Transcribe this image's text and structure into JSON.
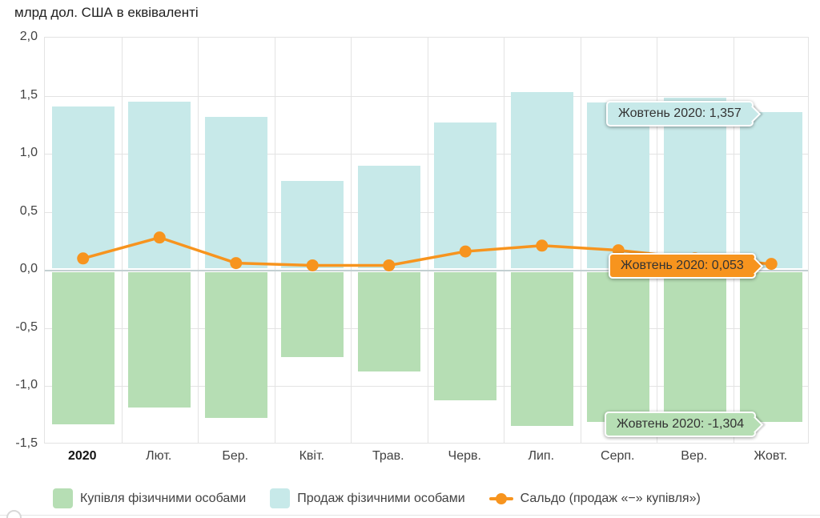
{
  "title": "млрд дол. США в еквіваленті",
  "colors": {
    "purchase_green": "#b6deb4",
    "sale_blue": "#c7e9e9",
    "saldo_orange": "#f7941e",
    "grid": "#e3e3e3",
    "zero_line": "#c3cfd1",
    "axis_text": "#424242"
  },
  "y_axis": {
    "tick_labels": [
      "2,0",
      "1,5",
      "1,0",
      "0,5",
      "0,0",
      "-0,5",
      "-1,0",
      "-1,5"
    ],
    "tick_values": [
      2.0,
      1.5,
      1.0,
      0.5,
      0.0,
      -0.5,
      -1.0,
      -1.5
    ]
  },
  "x_axis": {
    "labels": [
      "2020",
      "Лют.",
      "Бер.",
      "Квіт.",
      "Трав.",
      "Черв.",
      "Лип.",
      "Серп.",
      "Вер.",
      "Жовт."
    ]
  },
  "chart_data": {
    "type": "bar",
    "title": "млрд дол. США в еквіваленті",
    "categories": [
      "2020",
      "Лют.",
      "Бер.",
      "Квіт.",
      "Трав.",
      "Черв.",
      "Лип.",
      "Серп.",
      "Вер.",
      "Жовт."
    ],
    "series": [
      {
        "name": "Купівля фізичними особами",
        "kind": "bar",
        "color": "#b6deb4",
        "values": [
          -1.33,
          -1.18,
          -1.27,
          -0.75,
          -0.87,
          -1.12,
          -1.34,
          -1.31,
          -1.29,
          -1.304
        ]
      },
      {
        "name": "Продаж фізичними особами",
        "kind": "bar",
        "color": "#c7e9e9",
        "values": [
          1.41,
          1.45,
          1.32,
          0.77,
          0.9,
          1.27,
          1.53,
          1.44,
          1.48,
          1.357
        ]
      },
      {
        "name": "Сальдо (продаж «−» купівля»)",
        "kind": "line",
        "color": "#f7941e",
        "values": [
          0.1,
          0.28,
          0.06,
          0.04,
          0.04,
          0.16,
          0.21,
          0.17,
          0.1,
          0.053
        ]
      }
    ],
    "ylim": [
      -1.5,
      2.0
    ],
    "grid": true,
    "legend_position": "bottom"
  },
  "tooltips": [
    {
      "text": "Жовтень 2020: 1,357",
      "series": "Продаж фізичними особами",
      "color": "#c7e9e9"
    },
    {
      "text": "Жовтень 2020: 0,053",
      "series": "Сальдо (продаж «−» купівля»)",
      "color": "#f7941e"
    },
    {
      "text": "Жовтень 2020: -1,304",
      "series": "Купівля фізичними особами",
      "color": "#b6deb4"
    }
  ]
}
